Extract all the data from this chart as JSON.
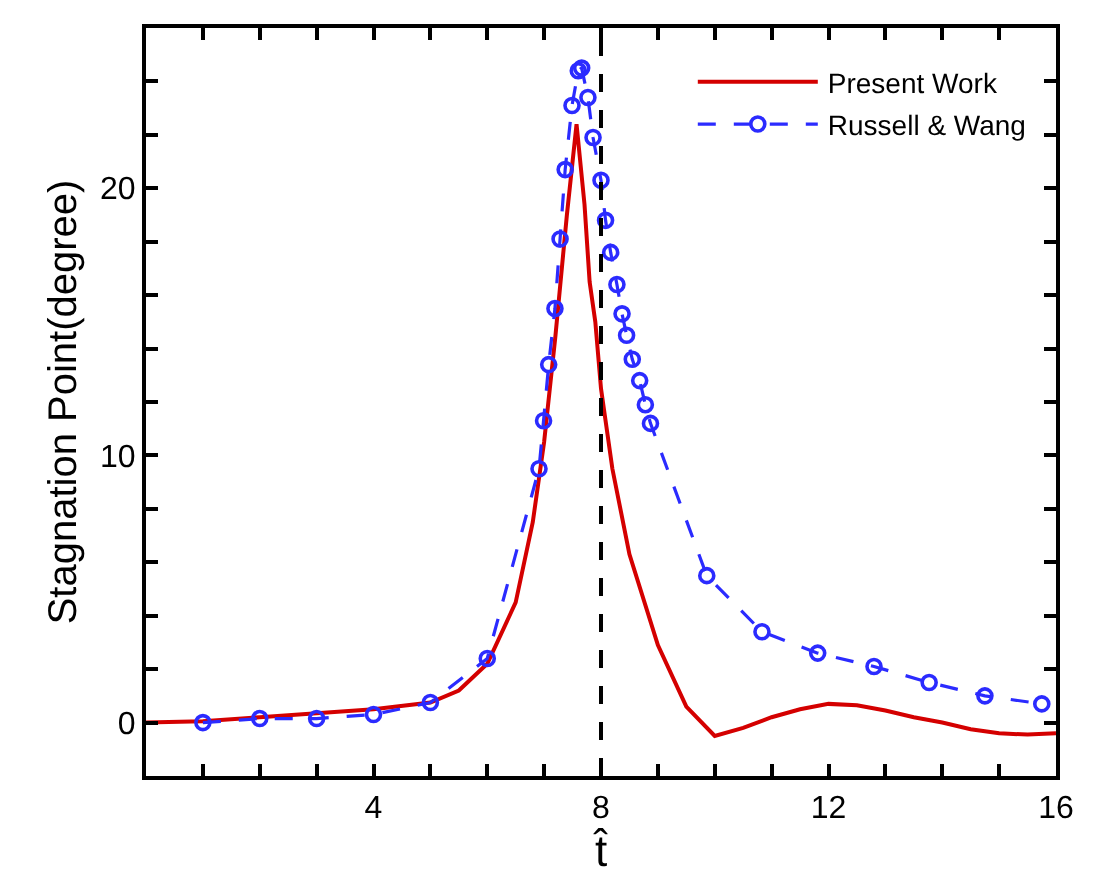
{
  "chart_data": {
    "type": "line",
    "xlabel": "t̂",
    "ylabel": "Stagnation Point(degree)",
    "xlim": [
      0,
      16
    ],
    "ylim": [
      -2,
      26
    ],
    "xticks": [
      {
        "value": 1,
        "label": null
      },
      {
        "value": 2,
        "label": null
      },
      {
        "value": 3,
        "label": null
      },
      4,
      {
        "value": 5,
        "label": null
      },
      {
        "value": 6,
        "label": null
      },
      {
        "value": 7,
        "label": null
      },
      8,
      {
        "value": 9,
        "label": null
      },
      {
        "value": 10,
        "label": null
      },
      {
        "value": 11,
        "label": null
      },
      12,
      {
        "value": 13,
        "label": null
      },
      {
        "value": 14,
        "label": null
      },
      {
        "value": 15,
        "label": null
      },
      16
    ],
    "yticks": [
      {
        "value": -2,
        "label": null
      },
      0,
      {
        "value": 2,
        "label": null
      },
      {
        "value": 4,
        "label": null
      },
      {
        "value": 6,
        "label": null
      },
      {
        "value": 8,
        "label": null
      },
      10,
      {
        "value": 12,
        "label": null
      },
      {
        "value": 14,
        "label": null
      },
      {
        "value": 16,
        "label": null
      },
      {
        "value": 18,
        "label": null
      },
      20,
      {
        "value": 22,
        "label": null
      },
      {
        "value": 24,
        "label": null
      }
    ],
    "legend": "top right",
    "ref_lines": [
      {
        "axis": "x",
        "value": 8,
        "color": "#000000",
        "line_style": "dashed"
      }
    ],
    "series": [
      {
        "name": "Present Work",
        "color": "#d40000",
        "marker": "none",
        "line_style": "solid",
        "x": [
          0,
          1,
          2,
          3,
          4,
          5,
          5.5,
          6,
          6.5,
          6.8,
          7,
          7.2,
          7.4,
          7.57,
          7.71,
          7.8,
          7.9,
          8.0,
          8.2,
          8.5,
          9.0,
          9.5,
          10.0,
          10.5,
          11,
          11.5,
          12,
          12.5,
          13,
          13.5,
          14,
          14.5,
          15,
          15.5,
          16
        ],
        "values": [
          0,
          0.05,
          0.2,
          0.35,
          0.5,
          0.75,
          1.2,
          2.2,
          4.5,
          7.5,
          10.5,
          14.5,
          19,
          22.4,
          19.4,
          16.5,
          15,
          12.5,
          9.5,
          6.3,
          2.9,
          0.6,
          -0.5,
          -0.2,
          0.2,
          0.5,
          0.7,
          0.65,
          0.45,
          0.2,
          0,
          -0.25,
          -0.4,
          -0.45,
          -0.4
        ]
      },
      {
        "name": "Russell & Wang",
        "color": "#2b2bff",
        "marker": "circle",
        "line_style": "dashed",
        "x": [
          1.0,
          2.0,
          3.0,
          4.0,
          5.0,
          6.0,
          6.91,
          6.99,
          7.08,
          7.19,
          7.28,
          7.37,
          7.49,
          7.6,
          7.66,
          7.77,
          7.86,
          8.0,
          8.08,
          8.17,
          8.28,
          8.37,
          8.45,
          8.55,
          8.68,
          8.78,
          8.87,
          9.86,
          10.83,
          11.81,
          12.8,
          13.77,
          14.75,
          15.75
        ],
        "values": [
          0.0,
          0.15,
          0.15,
          0.3,
          0.75,
          2.4,
          9.5,
          11.3,
          13.4,
          15.5,
          18.1,
          20.7,
          23.1,
          24.4,
          24.5,
          23.4,
          21.9,
          20.3,
          18.8,
          17.6,
          16.4,
          15.3,
          14.5,
          13.6,
          12.8,
          11.9,
          11.2,
          5.5,
          3.4,
          2.6,
          2.1,
          1.5,
          1.0,
          0.7
        ]
      }
    ]
  }
}
